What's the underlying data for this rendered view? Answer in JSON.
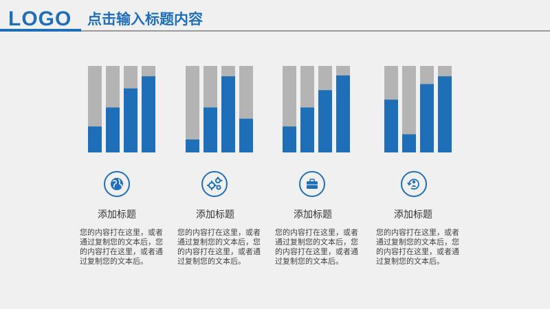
{
  "header": {
    "logo": "LOGO",
    "title": "点击输入标题内容"
  },
  "accent_color": "#1f6fb8",
  "track_color": "#b4b4b4",
  "chart_data": [
    {
      "type": "bar",
      "values": [
        0.3,
        0.52,
        0.74,
        0.88
      ],
      "ylim": [
        0,
        1
      ]
    },
    {
      "type": "bar",
      "values": [
        0.15,
        0.52,
        0.88,
        0.39
      ],
      "ylim": [
        0,
        1
      ]
    },
    {
      "type": "bar",
      "values": [
        0.3,
        0.52,
        0.72,
        0.89
      ],
      "ylim": [
        0,
        1
      ]
    },
    {
      "type": "bar",
      "values": [
        0.61,
        0.21,
        0.79,
        0.88
      ],
      "ylim": [
        0,
        1
      ]
    }
  ],
  "cards": [
    {
      "icon": "globe-icon",
      "title": "添加标题",
      "body": "您的内容打在这里，或者通过复制您的文本后，您的内容打在这里，或者通过复制您的文本后。"
    },
    {
      "icon": "gears-icon",
      "title": "添加标题",
      "body": "您的内容打在这里，或者通过复制您的文本后，您的内容打在这里，或者通过复制您的文本后。"
    },
    {
      "icon": "briefcase-icon",
      "title": "添加标题",
      "body": "您的内容打在这里，或者通过复制您的文本后，您的内容打在这里，或者通过复制您的文本后。"
    },
    {
      "icon": "user-refresh-icon",
      "title": "添加标题",
      "body": "您的内容打在这里，或者通过复制您的文本后，您的内容打在这里，或者通过复制您的文本后。"
    }
  ]
}
